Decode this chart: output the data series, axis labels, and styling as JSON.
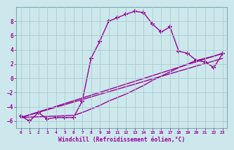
{
  "bg_color": "#cce8ec",
  "grid_color": "#aacccc",
  "line_color": "#990099",
  "marker": "+",
  "xlabel": "Windchill (Refroidissement éolien,°C)",
  "xlim": [
    -0.5,
    23.5
  ],
  "ylim": [
    -7,
    10
  ],
  "yticks": [
    -6,
    -4,
    -2,
    0,
    2,
    4,
    6,
    8
  ],
  "xticks": [
    0,
    1,
    2,
    3,
    4,
    5,
    6,
    7,
    8,
    9,
    10,
    11,
    12,
    13,
    14,
    15,
    16,
    17,
    18,
    19,
    20,
    21,
    22,
    23
  ],
  "series1_x": [
    0,
    1,
    2,
    3,
    4,
    5,
    6,
    7,
    8,
    9,
    10,
    11,
    12,
    13,
    14,
    15,
    16,
    17,
    18,
    19,
    20,
    21,
    22,
    23
  ],
  "series1_y": [
    -5.3,
    -6.0,
    -4.8,
    -5.7,
    -5.5,
    -5.5,
    -5.5,
    -3.2,
    2.8,
    5.2,
    8.0,
    8.5,
    9.0,
    9.4,
    9.2,
    7.6,
    6.5,
    7.2,
    3.8,
    3.5,
    2.5,
    2.3,
    1.5,
    3.5
  ],
  "series2_x": [
    0,
    23
  ],
  "series2_y": [
    -5.5,
    3.5
  ],
  "series3_x": [
    0,
    23
  ],
  "series3_y": [
    -5.5,
    3.5
  ],
  "series4_x": [
    0,
    6,
    7,
    8,
    9,
    10,
    11,
    12,
    13,
    14,
    15,
    16,
    17,
    18,
    19,
    20,
    21,
    22,
    23
  ],
  "series4_y": [
    -5.5,
    -5.2,
    -4.8,
    -4.3,
    -3.8,
    -3.2,
    -2.7,
    -2.2,
    -1.6,
    -1.0,
    -0.3,
    0.3,
    0.9,
    1.5,
    2.0,
    2.5,
    2.8,
    3.1,
    3.5
  ]
}
